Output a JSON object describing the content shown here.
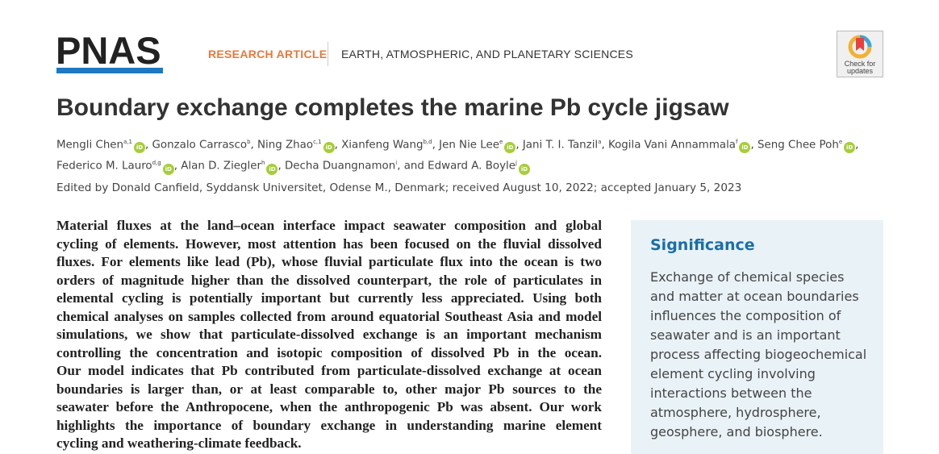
{
  "header": {
    "logo": "PNAS",
    "article_type": "RESEARCH ARTICLE",
    "section": "EARTH, ATMOSPHERIC, AND PLANETARY SCIENCES",
    "check_updates": [
      "Check for",
      "updates"
    ]
  },
  "title": "Boundary exchange completes the marine Pb cycle jigsaw",
  "authors": [
    {
      "name": "Mengli Chen",
      "sup": "a,1",
      "orcid": true
    },
    {
      "name": "Gonzalo Carrasco",
      "sup": "b",
      "orcid": false
    },
    {
      "name": "Ning Zhao",
      "sup": "c,1",
      "orcid": true
    },
    {
      "name": "Xianfeng Wang",
      "sup": "b,d",
      "orcid": false
    },
    {
      "name": "Jen Nie Lee",
      "sup": "e",
      "orcid": true
    },
    {
      "name": "Jani T. I. Tanzil",
      "sup": "a",
      "orcid": false
    },
    {
      "name": "Kogila Vani Annammala",
      "sup": "f",
      "orcid": true
    },
    {
      "name": "Seng Chee Poh",
      "sup": "e",
      "orcid": true
    },
    {
      "name": "Federico M. Lauro",
      "sup": "d,g",
      "orcid": true
    },
    {
      "name": "Alan D. Ziegler",
      "sup": "h",
      "orcid": true
    },
    {
      "name": "Decha Duangnamon",
      "sup": "i",
      "orcid": false
    },
    {
      "name": "Edward A. Boyle",
      "sup": "j",
      "orcid": true
    }
  ],
  "orcid_label": "iD",
  "edited": "Edited by Donald Canfield, Syddansk Universitet, Odense M., Denmark; received August 10, 2022; accepted January 5, 2023",
  "abstract_lines": [
    "Material fluxes at the land–ocean interface impact seawater composition and global",
    "cycling of elements. However, most attention has been focused on the fluvial dissolved",
    "fluxes. For elements like lead (Pb), whose fluvial particulate flux into the ocean is two",
    "orders of magnitude higher than the dissolved counterpart, the role of particulates in",
    "elemental cycling is potentially important but currently less appreciated. Using both",
    "chemical analyses on samples collected from around equatorial Southeast Asia and model",
    "simulations, we show that particulate-dissolved exchange is an important mechanism",
    "controlling the concentration and isotopic composition of dissolved Pb in the ocean.",
    "Our model indicates that Pb contributed from particulate-dissolved exchange at ocean",
    "boundaries is larger than, or at least comparable to, other major Pb sources to the",
    "seawater before the Anthropocene, when the anthropogenic Pb was absent. Our work",
    "highlights the importance of boundary exchange in understanding marine element",
    "cycling and weathering-climate feedback."
  ],
  "significance": {
    "heading": "Significance",
    "lines": [
      "Exchange of chemical species",
      "and matter at ocean boundaries",
      "influences the composition of",
      "seawater and is an important",
      "process affecting biogeochemical",
      "element cycling involving",
      "interactions between the",
      "atmosphere, hydrosphere,",
      "geosphere, and biosphere."
    ]
  },
  "colors": {
    "brand_blue": "#1e78c2",
    "article_type": "#e8793a",
    "orcid": "#a6ce39",
    "significance_bg": "#e9f2f7",
    "significance_heading": "#1a6ea8"
  }
}
